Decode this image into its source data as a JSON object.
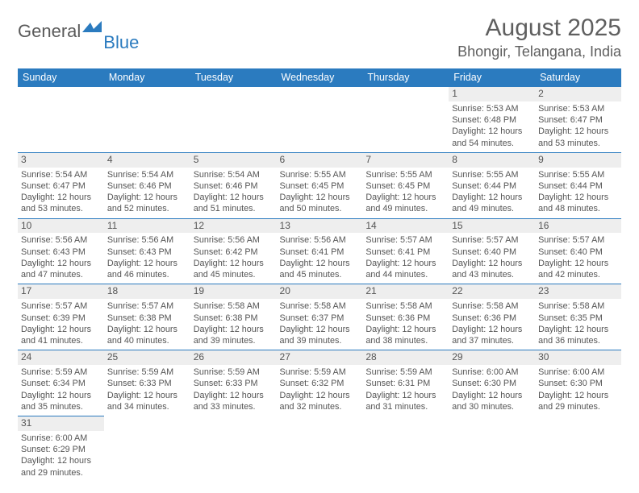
{
  "logo": {
    "part1": "General",
    "part2": "Blue"
  },
  "title": "August 2025",
  "location": "Bhongir, Telangana, India",
  "colors": {
    "accent": "#2b7bbf",
    "daybar": "#eeeeee",
    "text": "#555555",
    "bg": "#ffffff"
  },
  "weekdays": [
    "Sunday",
    "Monday",
    "Tuesday",
    "Wednesday",
    "Thursday",
    "Friday",
    "Saturday"
  ],
  "weeks": [
    [
      null,
      null,
      null,
      null,
      null,
      {
        "n": "1",
        "sr": "5:53 AM",
        "ss": "6:48 PM",
        "dl": "12 hours and 54 minutes."
      },
      {
        "n": "2",
        "sr": "5:53 AM",
        "ss": "6:47 PM",
        "dl": "12 hours and 53 minutes."
      }
    ],
    [
      {
        "n": "3",
        "sr": "5:54 AM",
        "ss": "6:47 PM",
        "dl": "12 hours and 53 minutes."
      },
      {
        "n": "4",
        "sr": "5:54 AM",
        "ss": "6:46 PM",
        "dl": "12 hours and 52 minutes."
      },
      {
        "n": "5",
        "sr": "5:54 AM",
        "ss": "6:46 PM",
        "dl": "12 hours and 51 minutes."
      },
      {
        "n": "6",
        "sr": "5:55 AM",
        "ss": "6:45 PM",
        "dl": "12 hours and 50 minutes."
      },
      {
        "n": "7",
        "sr": "5:55 AM",
        "ss": "6:45 PM",
        "dl": "12 hours and 49 minutes."
      },
      {
        "n": "8",
        "sr": "5:55 AM",
        "ss": "6:44 PM",
        "dl": "12 hours and 49 minutes."
      },
      {
        "n": "9",
        "sr": "5:55 AM",
        "ss": "6:44 PM",
        "dl": "12 hours and 48 minutes."
      }
    ],
    [
      {
        "n": "10",
        "sr": "5:56 AM",
        "ss": "6:43 PM",
        "dl": "12 hours and 47 minutes."
      },
      {
        "n": "11",
        "sr": "5:56 AM",
        "ss": "6:43 PM",
        "dl": "12 hours and 46 minutes."
      },
      {
        "n": "12",
        "sr": "5:56 AM",
        "ss": "6:42 PM",
        "dl": "12 hours and 45 minutes."
      },
      {
        "n": "13",
        "sr": "5:56 AM",
        "ss": "6:41 PM",
        "dl": "12 hours and 45 minutes."
      },
      {
        "n": "14",
        "sr": "5:57 AM",
        "ss": "6:41 PM",
        "dl": "12 hours and 44 minutes."
      },
      {
        "n": "15",
        "sr": "5:57 AM",
        "ss": "6:40 PM",
        "dl": "12 hours and 43 minutes."
      },
      {
        "n": "16",
        "sr": "5:57 AM",
        "ss": "6:40 PM",
        "dl": "12 hours and 42 minutes."
      }
    ],
    [
      {
        "n": "17",
        "sr": "5:57 AM",
        "ss": "6:39 PM",
        "dl": "12 hours and 41 minutes."
      },
      {
        "n": "18",
        "sr": "5:57 AM",
        "ss": "6:38 PM",
        "dl": "12 hours and 40 minutes."
      },
      {
        "n": "19",
        "sr": "5:58 AM",
        "ss": "6:38 PM",
        "dl": "12 hours and 39 minutes."
      },
      {
        "n": "20",
        "sr": "5:58 AM",
        "ss": "6:37 PM",
        "dl": "12 hours and 39 minutes."
      },
      {
        "n": "21",
        "sr": "5:58 AM",
        "ss": "6:36 PM",
        "dl": "12 hours and 38 minutes."
      },
      {
        "n": "22",
        "sr": "5:58 AM",
        "ss": "6:36 PM",
        "dl": "12 hours and 37 minutes."
      },
      {
        "n": "23",
        "sr": "5:58 AM",
        "ss": "6:35 PM",
        "dl": "12 hours and 36 minutes."
      }
    ],
    [
      {
        "n": "24",
        "sr": "5:59 AM",
        "ss": "6:34 PM",
        "dl": "12 hours and 35 minutes."
      },
      {
        "n": "25",
        "sr": "5:59 AM",
        "ss": "6:33 PM",
        "dl": "12 hours and 34 minutes."
      },
      {
        "n": "26",
        "sr": "5:59 AM",
        "ss": "6:33 PM",
        "dl": "12 hours and 33 minutes."
      },
      {
        "n": "27",
        "sr": "5:59 AM",
        "ss": "6:32 PM",
        "dl": "12 hours and 32 minutes."
      },
      {
        "n": "28",
        "sr": "5:59 AM",
        "ss": "6:31 PM",
        "dl": "12 hours and 31 minutes."
      },
      {
        "n": "29",
        "sr": "6:00 AM",
        "ss": "6:30 PM",
        "dl": "12 hours and 30 minutes."
      },
      {
        "n": "30",
        "sr": "6:00 AM",
        "ss": "6:30 PM",
        "dl": "12 hours and 29 minutes."
      }
    ],
    [
      {
        "n": "31",
        "sr": "6:00 AM",
        "ss": "6:29 PM",
        "dl": "12 hours and 29 minutes."
      },
      null,
      null,
      null,
      null,
      null,
      null
    ]
  ],
  "labels": {
    "sunrise": "Sunrise:",
    "sunset": "Sunset:",
    "daylight": "Daylight:"
  }
}
